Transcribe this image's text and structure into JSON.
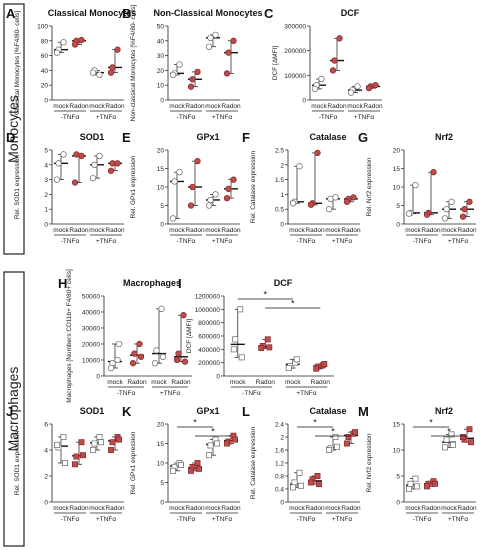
{
  "sections": {
    "monocytes": "Monocytes",
    "macrophages": "Macrophages"
  },
  "colors": {
    "mock_marker": "#8c8c8c",
    "radon_marker": "#c24a4a",
    "axis": "#222222"
  },
  "groups": {
    "mock": "mock",
    "radon": "Radon",
    "minus_tnf": "-TNFα",
    "plus_tnf": "+TNFα"
  },
  "chart_data": [
    {
      "panel": "A",
      "type": "scatter",
      "title": "Classical Monocytes",
      "ylabel": "Classical Monocytes [%F4/80- cells]",
      "ylim": [
        0,
        100
      ],
      "yticks": [
        0,
        20,
        40,
        60,
        80,
        100
      ],
      "marker": "circle",
      "series": [
        {
          "values": [
            68,
            78,
            64
          ]
        },
        {
          "values": [
            80,
            81,
            75
          ]
        },
        {
          "values": [
            40,
            34,
            37
          ]
        },
        {
          "values": [
            44,
            68,
            37
          ]
        }
      ],
      "significance": []
    },
    {
      "panel": "B",
      "type": "scatter",
      "title": "Non-Classical Monocytes",
      "ylabel": "Non-classical Monocytes [%F4/80- cells]",
      "ylim": [
        0,
        50
      ],
      "yticks": [
        0,
        10,
        20,
        30,
        40,
        50
      ],
      "marker": "circle",
      "series": [
        {
          "values": [
            18,
            24,
            17
          ]
        },
        {
          "values": [
            14,
            19,
            9
          ]
        },
        {
          "values": [
            42,
            44,
            36
          ]
        },
        {
          "values": [
            32,
            40,
            18
          ]
        }
      ],
      "significance": []
    },
    {
      "panel": "C",
      "type": "scatter",
      "title": "DCF",
      "ylabel": "DCF [ΔMFI]",
      "ylim": [
        0,
        300000
      ],
      "yticks": [
        0,
        100000,
        200000,
        300000
      ],
      "marker": "circle",
      "series": [
        {
          "values": [
            60000,
            85000,
            45000
          ]
        },
        {
          "values": [
            160000,
            250000,
            120000
          ]
        },
        {
          "values": [
            40000,
            55000,
            30000
          ]
        },
        {
          "values": [
            55000,
            60000,
            48000
          ]
        }
      ],
      "significance": []
    },
    {
      "panel": "D",
      "type": "scatter",
      "title": "SOD1",
      "ylabel": "Rel. SOD1 expression",
      "ylim": [
        0,
        5
      ],
      "yticks": [
        0,
        1,
        2,
        3,
        4,
        5
      ],
      "marker": "circle",
      "series": [
        {
          "values": [
            4.1,
            4.7,
            3.0
          ]
        },
        {
          "values": [
            4.7,
            4.6,
            2.8
          ]
        },
        {
          "values": [
            4.0,
            4.6,
            3.1
          ]
        },
        {
          "values": [
            4.1,
            4.1,
            3.6
          ]
        }
      ],
      "significance": []
    },
    {
      "panel": "E",
      "type": "scatter",
      "title": "GPx1",
      "ylabel": "Rel. GPx1 expression",
      "ylim": [
        0,
        20
      ],
      "yticks": [
        0,
        5,
        10,
        15,
        20
      ],
      "marker": "circle",
      "series": [
        {
          "values": [
            11.5,
            14,
            1.5
          ]
        },
        {
          "values": [
            10,
            17,
            5
          ]
        },
        {
          "values": [
            6.5,
            8,
            5
          ]
        },
        {
          "values": [
            9.5,
            12,
            7
          ]
        }
      ],
      "significance": []
    },
    {
      "panel": "F",
      "type": "scatter",
      "title": "Catalase",
      "ylabel": "Rel. Catalase expression",
      "ylim": [
        0,
        2.5
      ],
      "yticks": [
        0,
        0.5,
        1.0,
        1.5,
        2.0,
        2.5
      ],
      "marker": "circle",
      "series": [
        {
          "values": [
            0.75,
            1.95,
            0.7
          ]
        },
        {
          "values": [
            0.7,
            2.4,
            0.65
          ]
        },
        {
          "values": [
            0.85,
            0.9,
            0.5
          ]
        },
        {
          "values": [
            0.85,
            0.9,
            0.75
          ]
        }
      ],
      "significance": []
    },
    {
      "panel": "G",
      "type": "scatter",
      "title": "Nrf2",
      "ylabel": "Rel. Nrf2 expression",
      "ylim": [
        0,
        20
      ],
      "yticks": [
        0,
        5,
        10,
        15,
        20
      ],
      "marker": "circle",
      "series": [
        {
          "values": [
            3,
            10.5,
            2.8
          ]
        },
        {
          "values": [
            3,
            14,
            2.5
          ]
        },
        {
          "values": [
            4,
            6,
            1.5
          ]
        },
        {
          "values": [
            4,
            6,
            2
          ]
        }
      ],
      "significance": []
    },
    {
      "panel": "H",
      "type": "scatter",
      "title": "Macrophages",
      "ylabel": "Macrophages [Numbers CD11b+ F4/80+ cells]",
      "ylim": [
        0,
        50000
      ],
      "yticks": [
        0,
        10000,
        20000,
        30000,
        40000,
        50000
      ],
      "marker": "circle",
      "series": [
        {
          "values": [
            8000,
            10000,
            5000,
            20000
          ]
        },
        {
          "values": [
            14000,
            20000,
            8000,
            12000
          ]
        },
        {
          "values": [
            16000,
            42000,
            8000,
            12000
          ]
        },
        {
          "values": [
            14000,
            38000,
            10000,
            9000
          ]
        }
      ],
      "significance": []
    },
    {
      "panel": "I",
      "type": "scatter",
      "title": "DCF",
      "ylabel": "DCF [ΔMFI]",
      "ylim": [
        0,
        1200000
      ],
      "yticks": [
        0,
        200000,
        400000,
        600000,
        800000,
        1000000,
        1200000
      ],
      "marker": "square",
      "series": [
        {
          "values": [
            550000,
            1000000,
            400000,
            280000
          ]
        },
        {
          "values": [
            450000,
            550000,
            420000,
            430000
          ]
        },
        {
          "values": [
            150000,
            200000,
            120000,
            250000
          ]
        },
        {
          "values": [
            140000,
            160000,
            110000,
            180000
          ]
        }
      ],
      "significance": [
        {
          "from": 0,
          "to": 2,
          "label": "*"
        },
        {
          "from": 1,
          "to": 3,
          "label": "*"
        }
      ]
    },
    {
      "panel": "J",
      "type": "scatter",
      "title": "SOD1",
      "ylabel": "Rel. SOD1 expression",
      "ylim": [
        0,
        6
      ],
      "yticks": [
        0,
        2,
        4,
        6
      ],
      "marker": "square",
      "series": [
        {
          "values": [
            4.2,
            5.0,
            4.4,
            3.0
          ]
        },
        {
          "values": [
            3.5,
            4.6,
            2.9,
            3.6
          ]
        },
        {
          "values": [
            4.5,
            5.0,
            4.0,
            4.6
          ]
        },
        {
          "values": [
            4.6,
            5.0,
            4.0,
            4.8
          ]
        }
      ],
      "significance": []
    },
    {
      "panel": "K",
      "type": "scatter",
      "title": "GPx1",
      "ylabel": "Rel. GPx1 expression",
      "ylim": [
        0,
        20
      ],
      "yticks": [
        0,
        5,
        10,
        15,
        20
      ],
      "marker": "square",
      "series": [
        {
          "values": [
            9,
            10,
            8,
            9.5
          ]
        },
        {
          "values": [
            9,
            10,
            8,
            8.5
          ]
        },
        {
          "values": [
            14.5,
            16,
            12,
            15
          ]
        },
        {
          "values": [
            15.5,
            17,
            15,
            16
          ]
        }
      ],
      "significance": [
        {
          "from": 0,
          "to": 2,
          "label": "*"
        },
        {
          "from": 1,
          "to": 3,
          "label": "*"
        }
      ]
    },
    {
      "panel": "L",
      "type": "scatter",
      "title": "Catalase",
      "ylabel": "Rel. Catalase expression",
      "ylim": [
        0,
        2.4
      ],
      "yticks": [
        0,
        0.4,
        0.8,
        1.2,
        1.6,
        2.0,
        2.4
      ],
      "marker": "square",
      "series": [
        {
          "values": [
            0.6,
            0.9,
            0.45,
            0.5
          ]
        },
        {
          "values": [
            0.7,
            0.8,
            0.6,
            0.55
          ]
        },
        {
          "values": [
            1.65,
            2.0,
            1.6,
            1.7
          ]
        },
        {
          "values": [
            2.0,
            2.1,
            1.8,
            2.15
          ]
        }
      ],
      "significance": [
        {
          "from": 0,
          "to": 2,
          "label": "*"
        },
        {
          "from": 1,
          "to": 3,
          "label": "*"
        }
      ]
    },
    {
      "panel": "M",
      "type": "scatter",
      "title": "Nrf2",
      "ylabel": "Rel. Nrf2 expression",
      "ylim": [
        0,
        15
      ],
      "yticks": [
        0,
        5,
        10,
        15
      ],
      "marker": "square",
      "series": [
        {
          "values": [
            3.5,
            4.5,
            2.5,
            3.0
          ]
        },
        {
          "values": [
            3.5,
            4.0,
            3.0,
            3.5
          ]
        },
        {
          "values": [
            12,
            13,
            10.5,
            11
          ]
        },
        {
          "values": [
            12,
            14,
            12.5,
            11.5
          ]
        }
      ],
      "significance": [
        {
          "from": 0,
          "to": 2,
          "label": "*"
        },
        {
          "from": 1,
          "to": 3,
          "label": "*"
        }
      ]
    }
  ]
}
